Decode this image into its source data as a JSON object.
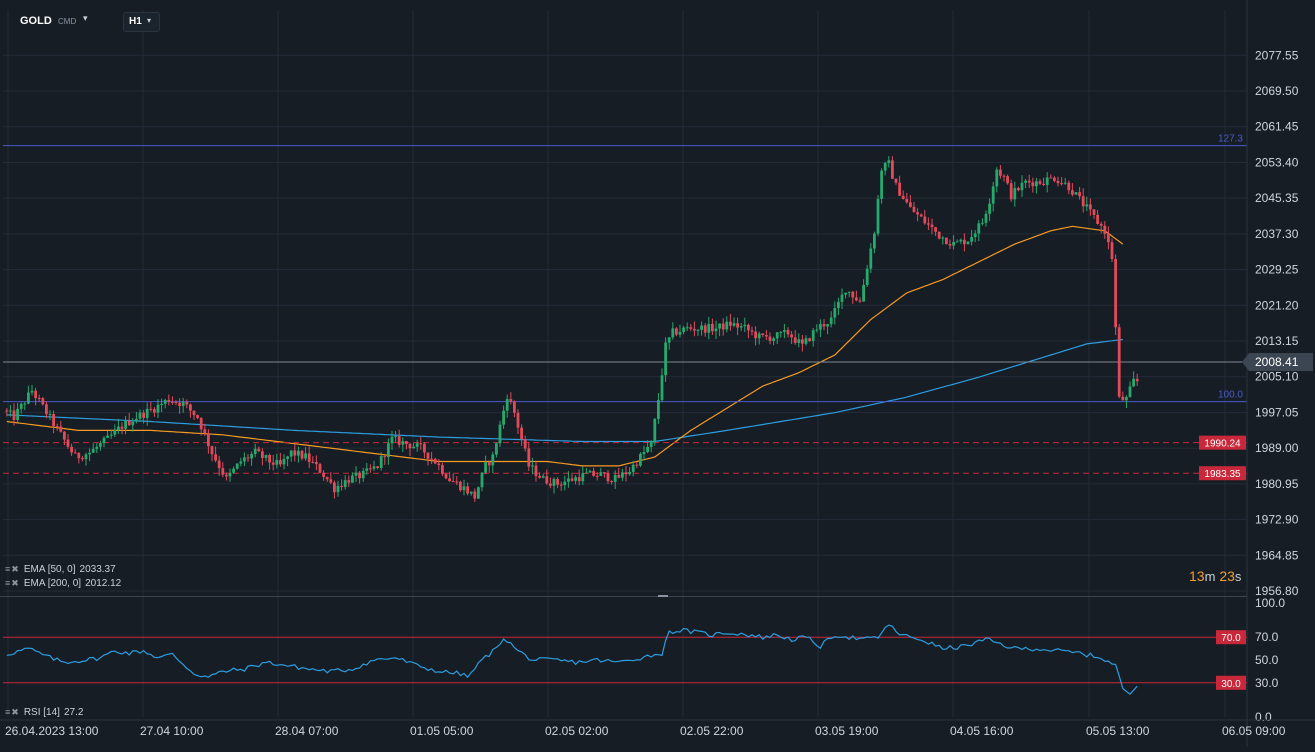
{
  "toolbar": {
    "symbol": "GOLD",
    "symbol_type": "CMD",
    "symbol_caret": "▾",
    "timeframe": "H1",
    "timeframe_caret": "▾"
  },
  "indicators": [
    {
      "name": "EMA",
      "params": "[50, 0]",
      "value": "2033.37",
      "color": "#f59a23"
    },
    {
      "name": "EMA",
      "params": "[200, 0]",
      "value": "2012.12",
      "color": "#2d9ee0"
    }
  ],
  "rsi_legend": {
    "name": "RSI",
    "params": "[14]",
    "value": "27.2",
    "color": "#2d9ee0"
  },
  "legend_icons": {
    "menu": "≡",
    "close": "✖"
  },
  "countdown": {
    "minutes": "13",
    "minutes_unit": "m",
    "seconds": "23",
    "seconds_unit": "s"
  },
  "colors": {
    "background": "#161d25",
    "grid": "#232d38",
    "bull": "#26a96c",
    "bear": "#e24a5a",
    "ema50": "#f59a23",
    "ema200": "#2d9ee0",
    "fib_line": "#4a5bc9",
    "level_line": "#c8283a",
    "current_price_line": "#7d8894"
  },
  "chart_data": [
    {
      "type": "candlestick",
      "symbol": "GOLD",
      "timeframe": "H1",
      "ylim": [
        1956.8,
        2081.0
      ],
      "price_ticks": [
        "2077.55",
        "2069.50",
        "2061.45",
        "2053.40",
        "2045.35",
        "2037.30",
        "2029.25",
        "2021.20",
        "2013.15",
        "2005.10",
        "1997.05",
        "1989.00",
        "1980.95",
        "1972.90",
        "1964.85",
        "1956.80"
      ],
      "time_labels": [
        "26.04.2023  13:00",
        "27.04  10:00",
        "28.04  07:00",
        "01.05  05:00",
        "02.05  02:00",
        "02.05  22:00",
        "03.05  19:00",
        "04.05  16:00",
        "05.05  13:00",
        "06.05  09:00"
      ],
      "n_slots": 227,
      "current_price": "2008.41",
      "fib_levels": [
        {
          "label": "127.3",
          "price": 2057.2
        },
        {
          "label": "100.0",
          "price": 1999.5
        }
      ],
      "horizontal_levels": [
        {
          "label": "1990.24",
          "price": 1990.24
        },
        {
          "label": "1983.35",
          "price": 1983.35
        }
      ],
      "anchors": [
        [
          0,
          1997.5
        ],
        [
          3,
          1996
        ],
        [
          8,
          2002
        ],
        [
          12,
          1997
        ],
        [
          16,
          1992
        ],
        [
          20,
          1987
        ],
        [
          24,
          1988
        ],
        [
          29,
          1991
        ],
        [
          33,
          1994
        ],
        [
          37,
          1996
        ],
        [
          42,
          1998
        ],
        [
          46,
          2000
        ],
        [
          50,
          1999
        ],
        [
          54,
          1996
        ],
        [
          58,
          1988
        ],
        [
          62,
          1982
        ],
        [
          66,
          1986
        ],
        [
          70,
          1988
        ],
        [
          74,
          1986
        ],
        [
          77,
          1985
        ],
        [
          80,
          1988
        ],
        [
          84,
          1987
        ],
        [
          88,
          1984
        ],
        [
          92,
          1980
        ],
        [
          96,
          1982
        ],
        [
          100,
          1983
        ],
        [
          104,
          1985
        ],
        [
          108,
          1991
        ],
        [
          112,
          1990
        ],
        [
          116,
          1989
        ],
        [
          120,
          1986
        ],
        [
          124,
          1982
        ],
        [
          128,
          1980
        ],
        [
          131,
          1978
        ],
        [
          134,
          1985
        ],
        [
          136,
          1987
        ],
        [
          138,
          1994
        ],
        [
          140,
          2001
        ],
        [
          142,
          1997
        ],
        [
          144,
          1991
        ],
        [
          146,
          1985
        ],
        [
          150,
          1982
        ],
        [
          154,
          1981
        ],
        [
          158,
          1982
        ],
        [
          162,
          1983
        ],
        [
          166,
          1983
        ],
        [
          170,
          1982
        ],
        [
          174,
          1984
        ],
        [
          178,
          1988
        ],
        [
          180,
          1990
        ],
        [
          182,
          2000
        ],
        [
          184,
          2012
        ],
        [
          186,
          2015
        ],
        [
          190,
          2016
        ],
        [
          194,
          2016
        ],
        [
          198,
          2016
        ],
        [
          202,
          2017
        ],
        [
          206,
          2016
        ],
        [
          210,
          2014
        ],
        [
          214,
          2014
        ],
        [
          218,
          2015
        ],
        [
          222,
          2012
        ],
        [
          226,
          2016
        ],
        [
          230,
          2018
        ],
        [
          234,
          2025
        ],
        [
          238,
          2022
        ],
        [
          240,
          2030
        ],
        [
          242,
          2038
        ],
        [
          244,
          2052
        ],
        [
          246,
          2053
        ],
        [
          248,
          2048
        ],
        [
          252,
          2043
        ],
        [
          256,
          2040
        ],
        [
          260,
          2037
        ],
        [
          264,
          2035
        ],
        [
          268,
          2036
        ],
        [
          272,
          2040
        ],
        [
          274,
          2045
        ],
        [
          276,
          2052
        ],
        [
          278,
          2050
        ],
        [
          280,
          2046
        ],
        [
          284,
          2049
        ],
        [
          288,
          2049
        ],
        [
          292,
          2050
        ],
        [
          296,
          2048
        ],
        [
          300,
          2044
        ],
        [
          304,
          2040
        ],
        [
          306,
          2038
        ],
        [
          308,
          2032
        ],
        [
          310,
          2000
        ],
        [
          312,
          2000
        ],
        [
          314,
          2004
        ]
      ],
      "ema50_anchors": [
        [
          0,
          1995
        ],
        [
          20,
          1993
        ],
        [
          40,
          1993
        ],
        [
          60,
          1992
        ],
        [
          80,
          1990
        ],
        [
          100,
          1988
        ],
        [
          120,
          1986
        ],
        [
          140,
          1986
        ],
        [
          150,
          1986
        ],
        [
          160,
          1985
        ],
        [
          170,
          1985
        ],
        [
          180,
          1987
        ],
        [
          190,
          1993
        ],
        [
          200,
          1998
        ],
        [
          210,
          2003
        ],
        [
          220,
          2006
        ],
        [
          230,
          2010
        ],
        [
          240,
          2018
        ],
        [
          250,
          2024
        ],
        [
          260,
          2027
        ],
        [
          270,
          2031
        ],
        [
          280,
          2035
        ],
        [
          290,
          2038
        ],
        [
          296,
          2039
        ],
        [
          305,
          2038
        ],
        [
          310,
          2035
        ]
      ],
      "ema200_anchors": [
        [
          0,
          1996.5
        ],
        [
          40,
          1995
        ],
        [
          80,
          1993
        ],
        [
          120,
          1991.5
        ],
        [
          160,
          1990.5
        ],
        [
          180,
          1990.5
        ],
        [
          200,
          1993
        ],
        [
          230,
          1997
        ],
        [
          250,
          2000.5
        ],
        [
          270,
          2005
        ],
        [
          290,
          2010
        ],
        [
          300,
          2012.5
        ],
        [
          310,
          2013.5
        ]
      ]
    },
    {
      "type": "line",
      "name": "RSI [14]",
      "ylim": [
        0,
        100
      ],
      "ticks": [
        "100.0",
        "70.0",
        "50.0",
        "30.0",
        "0.0"
      ],
      "levels": [
        {
          "label": "70.0",
          "value": 70
        },
        {
          "label": "30.0",
          "value": 30
        }
      ],
      "anchors": [
        [
          0,
          55
        ],
        [
          6,
          60
        ],
        [
          12,
          52
        ],
        [
          16,
          48
        ],
        [
          22,
          50
        ],
        [
          26,
          52
        ],
        [
          30,
          58
        ],
        [
          34,
          56
        ],
        [
          38,
          58
        ],
        [
          42,
          52
        ],
        [
          46,
          55
        ],
        [
          52,
          38
        ],
        [
          56,
          35
        ],
        [
          60,
          40
        ],
        [
          66,
          42
        ],
        [
          72,
          48
        ],
        [
          78,
          45
        ],
        [
          84,
          42
        ],
        [
          90,
          40
        ],
        [
          96,
          42
        ],
        [
          102,
          50
        ],
        [
          108,
          52
        ],
        [
          114,
          45
        ],
        [
          120,
          40
        ],
        [
          126,
          38
        ],
        [
          128,
          35
        ],
        [
          132,
          50
        ],
        [
          136,
          60
        ],
        [
          138,
          70
        ],
        [
          142,
          58
        ],
        [
          146,
          50
        ],
        [
          152,
          50
        ],
        [
          158,
          48
        ],
        [
          164,
          50
        ],
        [
          170,
          48
        ],
        [
          176,
          52
        ],
        [
          182,
          56
        ],
        [
          184,
          75
        ],
        [
          188,
          76
        ],
        [
          192,
          74
        ],
        [
          196,
          72
        ],
        [
          200,
          74
        ],
        [
          204,
          73
        ],
        [
          210,
          70
        ],
        [
          214,
          72
        ],
        [
          218,
          68
        ],
        [
          222,
          70
        ],
        [
          226,
          62
        ],
        [
          230,
          72
        ],
        [
          234,
          70
        ],
        [
          238,
          68
        ],
        [
          242,
          70
        ],
        [
          244,
          78
        ],
        [
          246,
          80
        ],
        [
          248,
          72
        ],
        [
          254,
          68
        ],
        [
          260,
          60
        ],
        [
          266,
          62
        ],
        [
          272,
          68
        ],
        [
          276,
          64
        ],
        [
          280,
          60
        ],
        [
          286,
          60
        ],
        [
          292,
          58
        ],
        [
          298,
          56
        ],
        [
          304,
          52
        ],
        [
          308,
          45
        ],
        [
          310,
          25
        ],
        [
          312,
          20
        ],
        [
          314,
          27
        ]
      ]
    }
  ]
}
